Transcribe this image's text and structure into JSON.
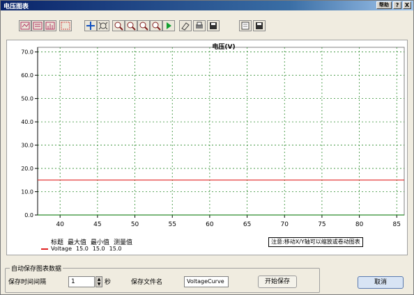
{
  "window": {
    "title": "电压图表",
    "controls": [
      "帮助",
      "?",
      "X"
    ]
  },
  "toolbar": {
    "icons": [
      "chart-edit-icon",
      "chart-settings-icon",
      "chart-type-icon",
      "chart-grid-icon",
      "move-icon",
      "zoom-select-icon",
      "zoom-in-icon",
      "zoom-out-icon",
      "zoom-fit-icon",
      "zoom-reset-icon",
      "play-icon",
      "eraser-icon",
      "print-icon",
      "save-icon",
      "copy-icon",
      "save-alt-icon"
    ]
  },
  "chart_data": {
    "type": "line",
    "title": "电压(V)",
    "xlim": [
      37,
      86
    ],
    "ylim": [
      0,
      72
    ],
    "xticks": [
      40,
      45,
      50,
      55,
      60,
      65,
      70,
      75,
      80,
      85
    ],
    "yticks": [
      0.0,
      10.0,
      20.0,
      30.0,
      40.0,
      50.0,
      60.0,
      70.0
    ],
    "ytick_labels": [
      "0.0",
      "10.0",
      "20.0",
      "30.0",
      "40.0",
      "50.0",
      "60.0",
      "70.0"
    ],
    "grid": true,
    "series": [
      {
        "name": "Voltage",
        "color": "#e02020",
        "x": [
          37,
          86
        ],
        "y": [
          15.0,
          15.0
        ]
      }
    ]
  },
  "legend": {
    "headers": [
      "标题",
      "最大值",
      "最小值",
      "测量值"
    ],
    "rows": [
      {
        "name": "Voltage",
        "max": "15.0",
        "min": "15.0",
        "value": "15.0"
      }
    ]
  },
  "hint": "注意:移动X/Y轴可以缩放或卷动图表",
  "autosave": {
    "group_title": "自动保存图表数据",
    "interval_label": "保存时间间隔",
    "interval_value": "1",
    "interval_unit": "秒",
    "filename_label": "保存文件名",
    "filename_value": "VoltageCurve",
    "start_label": "开始保存"
  },
  "cancel_label": "取消"
}
